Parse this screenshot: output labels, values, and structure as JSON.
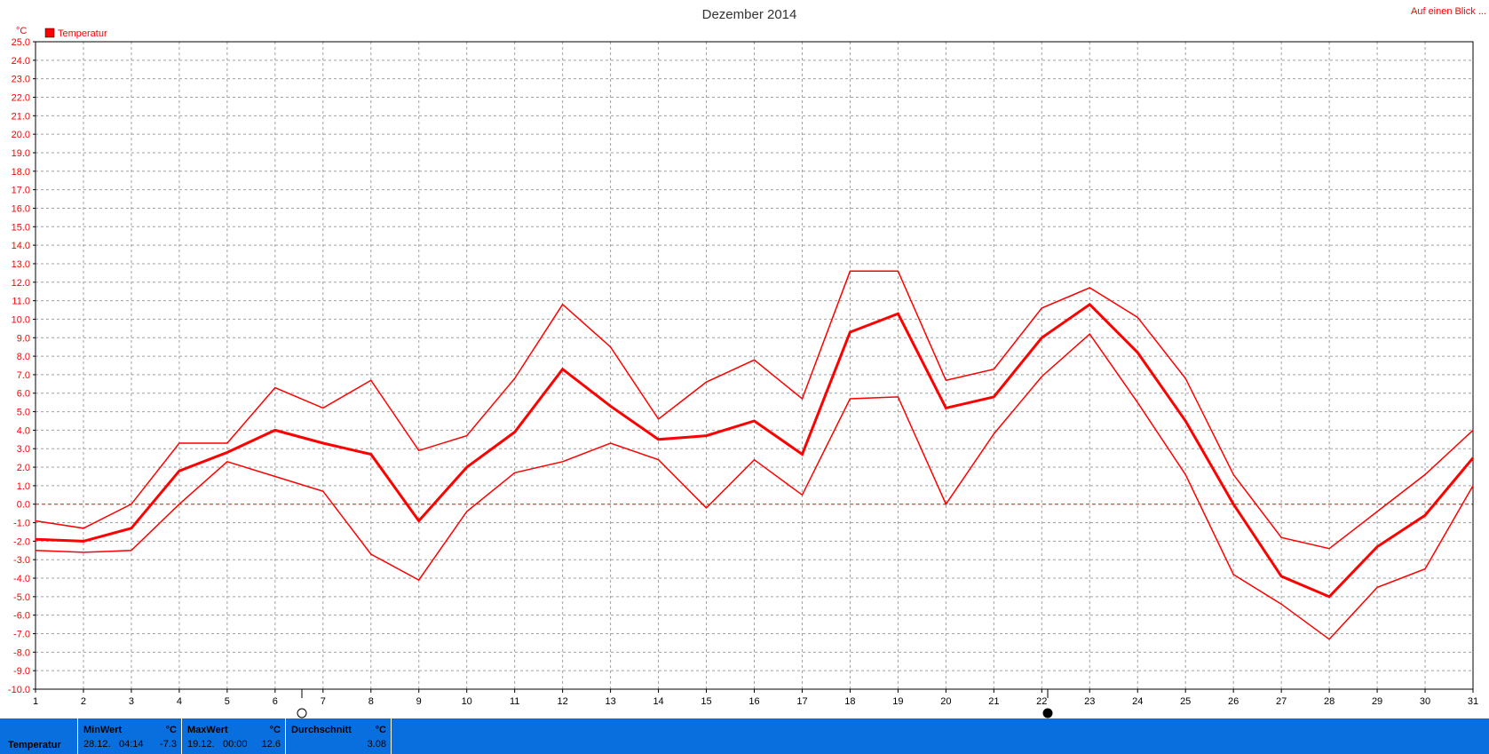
{
  "header": {
    "title": "Dezember 2014",
    "link": "Auf einen Blick ..."
  },
  "chart_data": {
    "type": "line",
    "title": "Dezember 2014",
    "ylabel": "°C",
    "ylim": [
      -10,
      25
    ],
    "yticks": [
      "25.0",
      "24.0",
      "23.0",
      "22.0",
      "21.0",
      "20.0",
      "19.0",
      "18.0",
      "17.0",
      "16.0",
      "15.0",
      "14.0",
      "13.0",
      "12.0",
      "11.0",
      "10.0",
      "9.0",
      "8.0",
      "7.0",
      "6.0",
      "5.0",
      "4.0",
      "3.0",
      "2.0",
      "1.0",
      "0.0",
      "-1.0",
      "-2.0",
      "-3.0",
      "-4.0",
      "-5.0",
      "-6.0",
      "-7.0",
      "-8.0",
      "-9.0",
      "-10.0"
    ],
    "x": [
      1,
      2,
      3,
      4,
      5,
      6,
      7,
      8,
      9,
      10,
      11,
      12,
      13,
      14,
      15,
      16,
      17,
      18,
      19,
      20,
      21,
      22,
      23,
      24,
      25,
      26,
      27,
      28,
      29,
      30,
      31
    ],
    "legend": [
      "Temperatur"
    ],
    "legend_position": "top-left",
    "grid": true,
    "color": "#ff0000",
    "series": [
      {
        "name": "Temperatur",
        "values": [
          -1.9,
          -2.0,
          -1.3,
          1.8,
          2.8,
          4.0,
          3.3,
          2.7,
          -0.9,
          2.0,
          3.9,
          7.3,
          5.3,
          3.5,
          3.7,
          4.5,
          2.7,
          9.3,
          10.3,
          5.2,
          5.8,
          9.0,
          10.8,
          8.2,
          4.5,
          0.0,
          -3.9,
          -5.0,
          -2.3,
          -0.6,
          2.5
        ]
      },
      {
        "values": [
          -0.9,
          -1.3,
          0.0,
          3.3,
          3.3,
          6.3,
          5.2,
          6.7,
          2.9,
          3.7,
          6.8,
          10.8,
          8.5,
          4.6,
          6.6,
          7.8,
          5.7,
          12.6,
          12.6,
          6.7,
          7.3,
          10.6,
          11.7,
          10.1,
          6.8,
          1.6,
          -1.8,
          -2.4,
          -0.4,
          1.6,
          4.0
        ]
      },
      {
        "values": [
          -2.5,
          -2.6,
          -2.5,
          0.0,
          2.3,
          1.5,
          0.7,
          -2.7,
          -4.1,
          -0.4,
          1.7,
          2.3,
          3.3,
          2.4,
          -0.2,
          2.4,
          0.5,
          5.7,
          5.8,
          0.0,
          3.8,
          6.9,
          9.2,
          5.5,
          1.6,
          -3.8,
          -5.4,
          -7.3,
          -4.5,
          -3.5,
          1.0
        ]
      }
    ]
  },
  "stats": {
    "series_label": "Temperatur",
    "min": {
      "header": "MinWert",
      "unit": "°C",
      "date": "28.12.",
      "time": "04:14",
      "value": "-7.3"
    },
    "max": {
      "header": "MaxWert",
      "unit": "°C",
      "date": "19.12.",
      "time": "00:00",
      "value": "12.6"
    },
    "avg": {
      "header": "Durchschnitt",
      "unit": "°C",
      "value": "3.08"
    }
  },
  "moon_icons": [
    "full-moon-icon",
    "new-moon-icon"
  ]
}
